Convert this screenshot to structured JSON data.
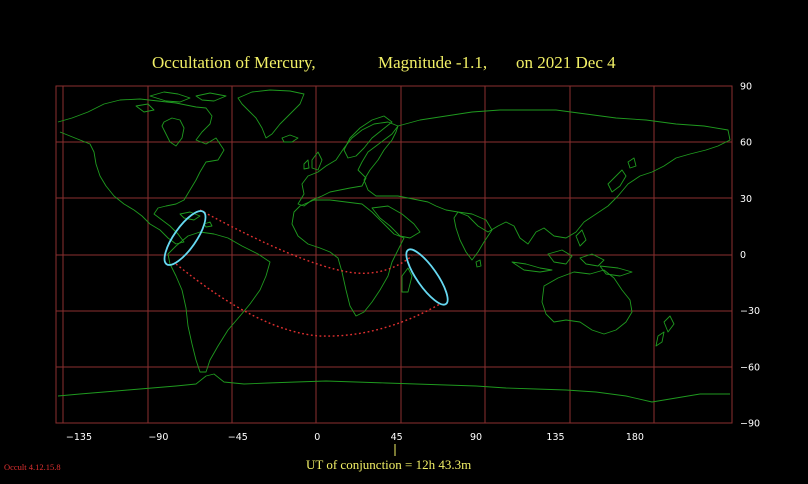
{
  "title": {
    "body_part": "Occultation  of  Mercury,",
    "magnitude_part": "Magnitude -1.1,",
    "date_part": "on  2021 Dec  4"
  },
  "map": {
    "projection": "equirectangular",
    "lon_range": [
      -148,
      235
    ],
    "lat_range": [
      -90,
      90
    ],
    "lon_ticks": [
      -135,
      -90,
      -45,
      0,
      45,
      90,
      135,
      180
    ],
    "lat_ticks": [
      90,
      60,
      30,
      0,
      -30,
      -60,
      -90
    ],
    "lon_tick_labels": [
      "−135",
      "−90",
      "−45",
      "0",
      "45",
      "90",
      "135",
      "180"
    ],
    "lat_tick_labels": [
      "90",
      "60",
      "30",
      "0",
      "−30",
      "−60",
      "−90"
    ],
    "colors": {
      "background": "#000000",
      "grid": "#8b2f2f",
      "coastline": "#1f9a1f",
      "visibility_curve": "#e03030",
      "occultation_boundary": "#66d9f2",
      "title": "#f2f066",
      "tick_label": "#ffffff",
      "version": "#e03030"
    },
    "occultation_regions": [
      {
        "name": "Central America / northern South America",
        "center": [
          -72,
          8
        ]
      },
      {
        "name": "Indian Ocean east of Africa",
        "center": [
          62,
          -10
        ]
      }
    ]
  },
  "conjunction": {
    "label": "UT of conjunction = 12h 43.3m",
    "marker_lon": 42
  },
  "software_version": "Occult 4.12.15.8"
}
